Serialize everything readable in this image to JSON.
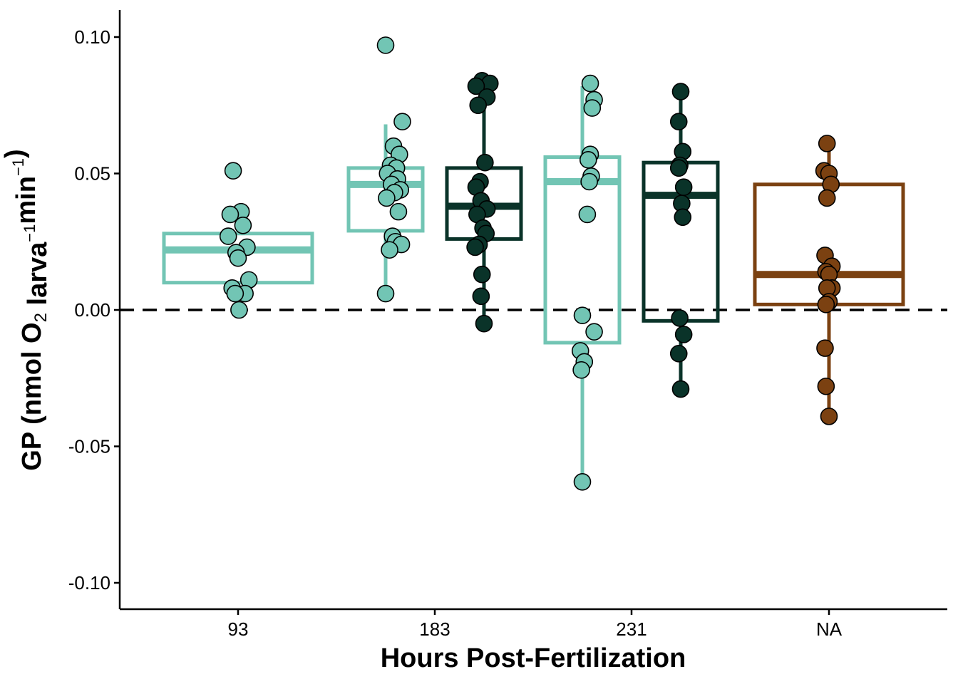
{
  "chart_data": {
    "type": "box",
    "xlabel": "Hours Post-Fertilization",
    "ylabel": {
      "parts": [
        {
          "text": "GP (nmol O",
          "style": "normal"
        },
        {
          "text": "2",
          "style": "sub"
        },
        {
          "text": " larva",
          "style": "normal"
        },
        {
          "text": "−1",
          "style": "sup"
        },
        {
          "text": "min",
          "style": "normal"
        },
        {
          "text": "−1",
          "style": "sup"
        },
        {
          "text": ")",
          "style": "normal"
        }
      ]
    },
    "categories": [
      "93",
      "183",
      "231",
      "NA"
    ],
    "ylim": [
      -0.11,
      0.11
    ],
    "yticks": [
      -0.1,
      -0.05,
      0.0,
      0.05,
      0.1
    ],
    "ytick_labels": [
      "-0.10",
      "-0.05",
      "0.00",
      "0.05",
      "0.10"
    ],
    "reference_line": {
      "y": 0.0,
      "style": "dashed",
      "color": "#000000"
    },
    "grid": false,
    "legend": "none",
    "colors": {
      "light": "#72c5b4",
      "dark": "#0a3329",
      "brown": "#7b4111"
    },
    "boxes": [
      {
        "category": "93",
        "offset": 0,
        "color": "light",
        "q1": 0.01,
        "median": 0.022,
        "q3": 0.028,
        "whisker_low": 0.005,
        "whisker_high": 0.037
      },
      {
        "category": "183",
        "offset": -0.5,
        "color": "light",
        "q1": 0.029,
        "median": 0.046,
        "q3": 0.052,
        "whisker_low": 0.006,
        "whisker_high": 0.068
      },
      {
        "category": "183",
        "offset": 0.5,
        "color": "dark",
        "q1": 0.026,
        "median": 0.038,
        "q3": 0.052,
        "whisker_low": -0.005,
        "whisker_high": 0.083
      },
      {
        "category": "231",
        "offset": -0.5,
        "color": "light",
        "q1": -0.012,
        "median": 0.047,
        "q3": 0.056,
        "whisker_low": -0.063,
        "whisker_high": 0.082
      },
      {
        "category": "231",
        "offset": 0.5,
        "color": "dark",
        "q1": -0.004,
        "median": 0.042,
        "q3": 0.054,
        "whisker_low": -0.029,
        "whisker_high": 0.08
      },
      {
        "category": "NA",
        "offset": 0,
        "color": "brown",
        "q1": 0.002,
        "median": 0.013,
        "q3": 0.046,
        "whisker_low": -0.039,
        "whisker_high": 0.061
      }
    ],
    "points": [
      {
        "category": "93",
        "offset": 0,
        "color": "light",
        "jitter": [
          -0.05,
          0.03,
          -0.08,
          0.05,
          -0.1,
          0.09,
          -0.02,
          0.0,
          0.11,
          -0.06,
          0.07,
          -0.03,
          0.01
        ],
        "values": [
          0.051,
          0.036,
          0.035,
          0.031,
          0.027,
          0.023,
          0.021,
          0.019,
          0.011,
          0.008,
          0.006,
          0.006,
          0.0
        ]
      },
      {
        "category": "183",
        "offset": -0.5,
        "color": "light",
        "jitter": [
          0.0,
          0.17,
          0.08,
          0.14,
          0.05,
          0.11,
          0.02,
          0.12,
          0.06,
          0.15,
          0.09,
          0.01,
          0.13,
          0.07,
          0.1,
          0.16,
          0.04,
          0.0
        ],
        "values": [
          0.097,
          0.069,
          0.06,
          0.057,
          0.053,
          0.052,
          0.05,
          0.048,
          0.046,
          0.044,
          0.043,
          0.041,
          0.036,
          0.027,
          0.025,
          0.024,
          0.022,
          0.006
        ]
      },
      {
        "category": "183",
        "offset": 0.5,
        "color": "dark",
        "jitter": [
          -0.02,
          0.06,
          -0.08,
          0.03,
          -0.06,
          0.01,
          -0.04,
          -0.08,
          -0.03,
          0.03,
          -0.07,
          -0.01,
          0.02,
          -0.05,
          -0.09,
          -0.02,
          -0.03,
          0.0
        ],
        "values": [
          0.084,
          0.083,
          0.082,
          0.078,
          0.075,
          0.054,
          0.047,
          0.045,
          0.04,
          0.037,
          0.035,
          0.03,
          0.028,
          0.024,
          0.023,
          0.013,
          0.005,
          -0.005
        ]
      },
      {
        "category": "231",
        "offset": -0.5,
        "color": "light",
        "jitter": [
          0.08,
          0.12,
          0.1,
          0.08,
          0.06,
          0.09,
          0.07,
          0.05,
          0.0,
          0.12,
          -0.02,
          0.02,
          -0.01,
          0.0
        ],
        "values": [
          0.083,
          0.077,
          0.074,
          0.057,
          0.055,
          0.049,
          0.047,
          0.035,
          -0.002,
          -0.008,
          -0.015,
          -0.019,
          -0.022,
          -0.063
        ]
      },
      {
        "category": "231",
        "offset": 0.5,
        "color": "dark",
        "jitter": [
          0.0,
          -0.02,
          0.02,
          -0.01,
          -0.02,
          0.03,
          0.01,
          0.02,
          -0.01,
          0.03,
          -0.02,
          0.0
        ],
        "values": [
          0.08,
          0.069,
          0.058,
          0.053,
          0.052,
          0.045,
          0.039,
          0.034,
          -0.003,
          -0.009,
          -0.016,
          -0.029
        ]
      },
      {
        "category": "NA",
        "offset": 0,
        "color": "brown",
        "jitter": [
          -0.02,
          -0.05,
          0.0,
          0.02,
          -0.02,
          -0.04,
          0.03,
          -0.03,
          0.0,
          0.03,
          -0.02,
          0.0,
          -0.03,
          -0.04,
          -0.03,
          0.0
        ],
        "values": [
          0.061,
          0.051,
          0.05,
          0.046,
          0.041,
          0.02,
          0.016,
          0.014,
          0.013,
          0.008,
          0.008,
          0.003,
          0.002,
          -0.014,
          -0.028,
          -0.039
        ]
      }
    ]
  }
}
